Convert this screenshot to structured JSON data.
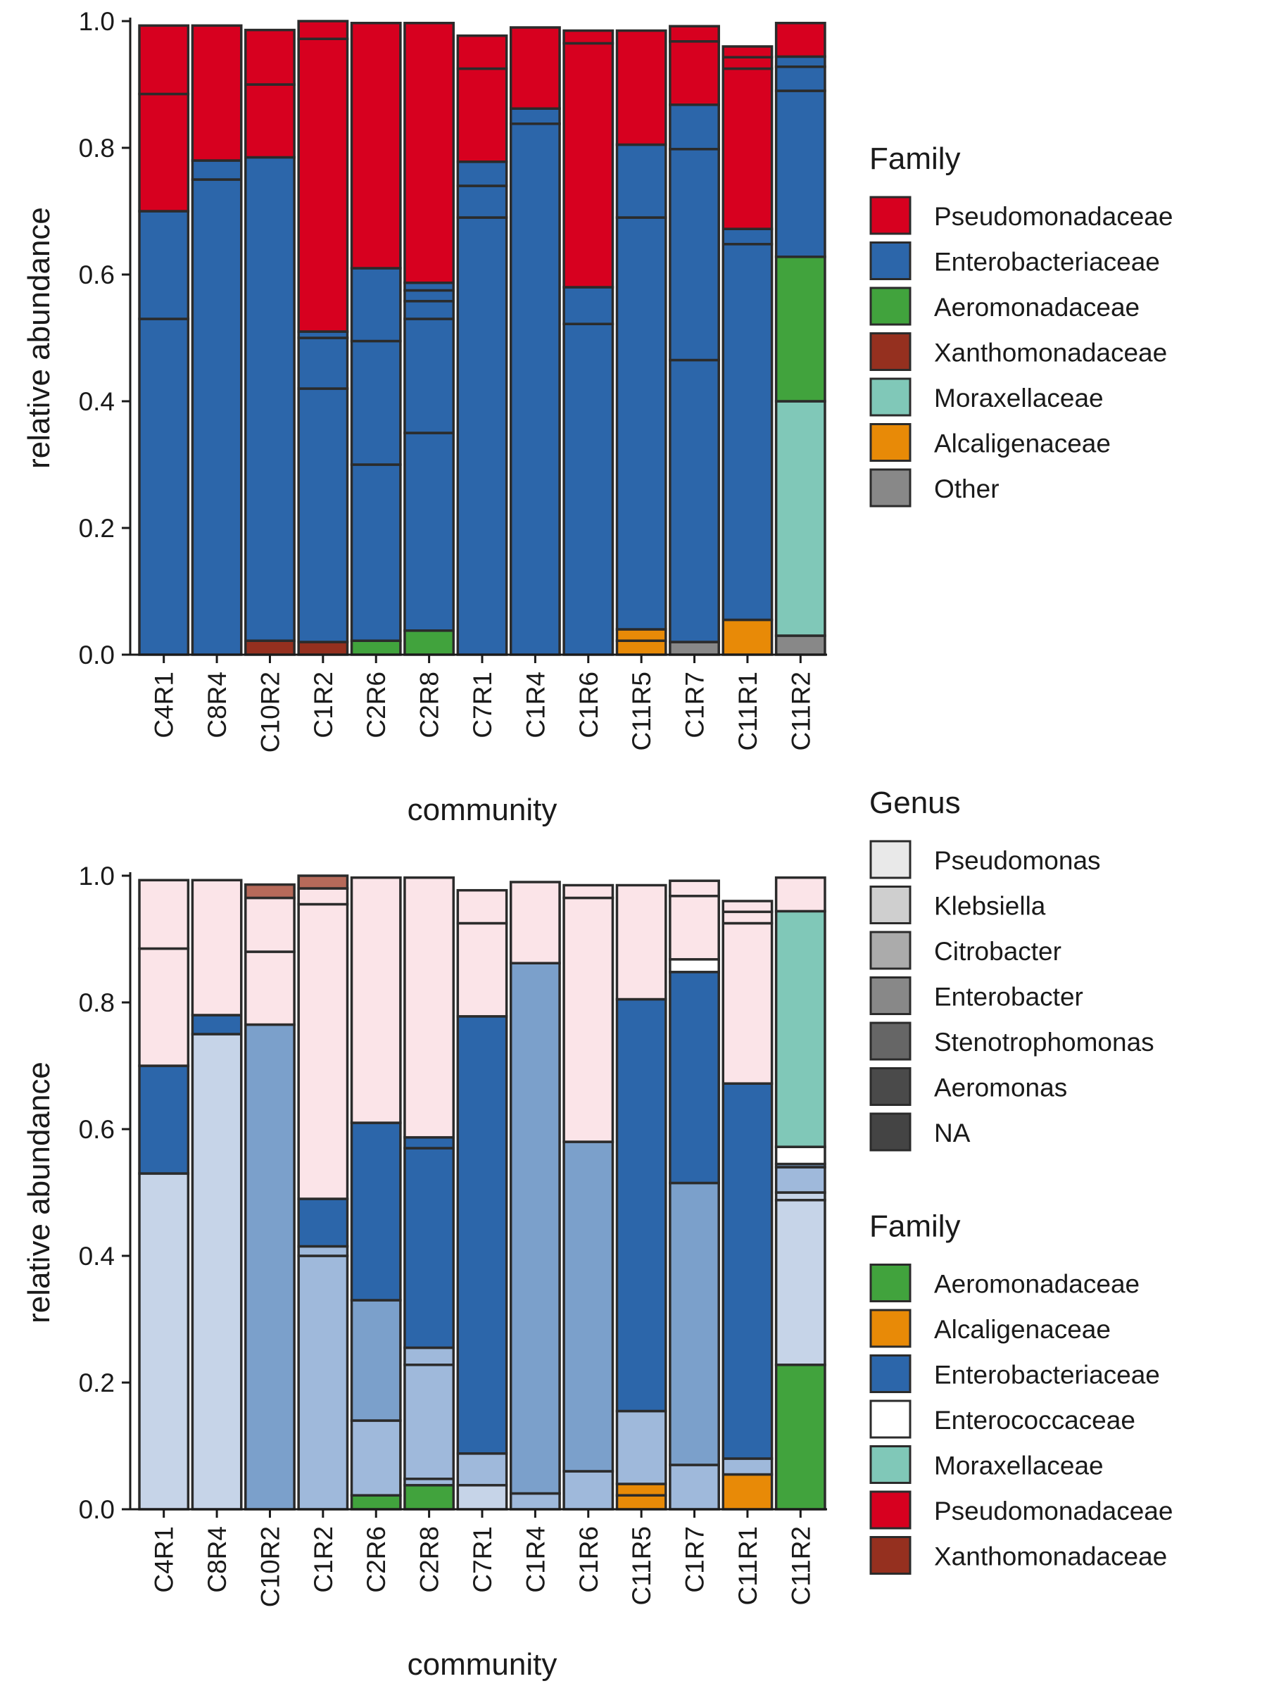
{
  "palette": {
    "Pseudomonadaceae": "#d7001f",
    "Enterobacteriaceae": "#2c66aa",
    "Aeromonadaceae": "#41a33d",
    "Xanthomonadaceae": "#95301f",
    "Moraxellaceae": "#80c8b8",
    "Alcaligenaceae": "#e88a07",
    "Enterococcaceae": "#ffffff",
    "Other": "#888888",
    "pink": "#fbe4e8",
    "blue1": "#c6d4e8",
    "blue2": "#9fb9db",
    "blue3": "#7ba0cb",
    "blue4": "#2c66aa",
    "xan_light": "#b66a5a",
    "edge": "#2b2b2b"
  },
  "chart_data": [
    {
      "type": "bar",
      "stacked": true,
      "categories": [
        "C4R1",
        "C8R4",
        "C10R2",
        "C1R2",
        "C2R6",
        "C2R8",
        "C7R1",
        "C1R4",
        "C1R6",
        "C11R5",
        "C1R7",
        "C11R1",
        "C11R2"
      ],
      "xlabel": "community",
      "ylabel": "relative abundance",
      "ylim": [
        0,
        1
      ],
      "yticks": [
        "0.0",
        "0.2",
        "0.4",
        "0.6",
        "0.8",
        "1.0"
      ],
      "grid": false,
      "legend_position": "right",
      "legends": [
        {
          "title": "Family",
          "entries": [
            {
              "label": "Pseudomonadaceae",
              "color": "#d7001f"
            },
            {
              "label": "Enterobacteriaceae",
              "color": "#2c66aa"
            },
            {
              "label": "Aeromonadaceae",
              "color": "#41a33d"
            },
            {
              "label": "Xanthomonadaceae",
              "color": "#95301f"
            },
            {
              "label": "Moraxellaceae",
              "color": "#80c8b8"
            },
            {
              "label": "Alcaligenaceae",
              "color": "#e88a07"
            },
            {
              "label": "Other",
              "color": "#888888"
            }
          ]
        }
      ],
      "stacks": [
        [
          [
            "Enterobacteriaceae",
            0,
            0.53
          ],
          [
            "Enterobacteriaceae",
            0.53,
            0.7
          ],
          [
            "Pseudomonadaceae",
            0.7,
            0.885
          ],
          [
            "Pseudomonadaceae",
            0.885,
            0.993
          ]
        ],
        [
          [
            "Enterobacteriaceae",
            0,
            0.75
          ],
          [
            "Enterobacteriaceae",
            0.75,
            0.78
          ],
          [
            "Pseudomonadaceae",
            0.78,
            0.993
          ]
        ],
        [
          [
            "Xanthomonadaceae",
            0,
            0.022
          ],
          [
            "Enterobacteriaceae",
            0.022,
            0.785
          ],
          [
            "Pseudomonadaceae",
            0.785,
            0.9
          ],
          [
            "Pseudomonadaceae",
            0.9,
            0.986
          ]
        ],
        [
          [
            "Xanthomonadaceae",
            0,
            0.02
          ],
          [
            "Enterobacteriaceae",
            0.02,
            0.42
          ],
          [
            "Enterobacteriaceae",
            0.42,
            0.5
          ],
          [
            "Enterobacteriaceae",
            0.5,
            0.51
          ],
          [
            "Pseudomonadaceae",
            0.51,
            0.972
          ],
          [
            "Pseudomonadaceae",
            0.972,
            1.0
          ]
        ],
        [
          [
            "Aeromonadaceae",
            0,
            0.022
          ],
          [
            "Enterobacteriaceae",
            0.022,
            0.3
          ],
          [
            "Enterobacteriaceae",
            0.3,
            0.495
          ],
          [
            "Enterobacteriaceae",
            0.495,
            0.61
          ],
          [
            "Pseudomonadaceae",
            0.61,
            0.997
          ]
        ],
        [
          [
            "Aeromonadaceae",
            0,
            0.038
          ],
          [
            "Enterobacteriaceae",
            0.038,
            0.35
          ],
          [
            "Enterobacteriaceae",
            0.35,
            0.53
          ],
          [
            "Enterobacteriaceae",
            0.53,
            0.558
          ],
          [
            "Enterobacteriaceae",
            0.558,
            0.575
          ],
          [
            "Enterobacteriaceae",
            0.575,
            0.587
          ],
          [
            "Pseudomonadaceae",
            0.587,
            0.997
          ]
        ],
        [
          [
            "Enterobacteriaceae",
            0,
            0.69
          ],
          [
            "Enterobacteriaceae",
            0.69,
            0.74
          ],
          [
            "Enterobacteriaceae",
            0.74,
            0.778
          ],
          [
            "Pseudomonadaceae",
            0.778,
            0.925
          ],
          [
            "Pseudomonadaceae",
            0.925,
            0.977
          ]
        ],
        [
          [
            "Enterobacteriaceae",
            0,
            0.838
          ],
          [
            "Enterobacteriaceae",
            0.838,
            0.862
          ],
          [
            "Pseudomonadaceae",
            0.862,
            0.99
          ]
        ],
        [
          [
            "Enterobacteriaceae",
            0,
            0.522
          ],
          [
            "Enterobacteriaceae",
            0.522,
            0.58
          ],
          [
            "Pseudomonadaceae",
            0.58,
            0.965
          ],
          [
            "Pseudomonadaceae",
            0.965,
            0.985
          ]
        ],
        [
          [
            "Alcaligenaceae",
            0,
            0.022
          ],
          [
            "Alcaligenaceae",
            0.022,
            0.04
          ],
          [
            "Enterobacteriaceae",
            0.04,
            0.69
          ],
          [
            "Enterobacteriaceae",
            0.69,
            0.805
          ],
          [
            "Pseudomonadaceae",
            0.805,
            0.985
          ]
        ],
        [
          [
            "Other",
            0,
            0.02
          ],
          [
            "Enterobacteriaceae",
            0.02,
            0.465
          ],
          [
            "Enterobacteriaceae",
            0.465,
            0.798
          ],
          [
            "Enterobacteriaceae",
            0.798,
            0.868
          ],
          [
            "Pseudomonadaceae",
            0.868,
            0.968
          ],
          [
            "Pseudomonadaceae",
            0.968,
            0.992
          ]
        ],
        [
          [
            "Alcaligenaceae",
            0,
            0.055
          ],
          [
            "Enterobacteriaceae",
            0.055,
            0.648
          ],
          [
            "Enterobacteriaceae",
            0.648,
            0.672
          ],
          [
            "Pseudomonadaceae",
            0.672,
            0.925
          ],
          [
            "Pseudomonadaceae",
            0.925,
            0.943
          ],
          [
            "Pseudomonadaceae",
            0.943,
            0.96
          ]
        ],
        [
          [
            "Other",
            0,
            0.03
          ],
          [
            "Moraxellaceae",
            0.03,
            0.4
          ],
          [
            "Aeromonadaceae",
            0.4,
            0.628
          ],
          [
            "Enterobacteriaceae",
            0.628,
            0.89
          ],
          [
            "Enterobacteriaceae",
            0.89,
            0.928
          ],
          [
            "Enterobacteriaceae",
            0.928,
            0.944
          ],
          [
            "Pseudomonadaceae",
            0.944,
            0.997
          ]
        ]
      ]
    },
    {
      "type": "bar",
      "stacked": true,
      "categories": [
        "C4R1",
        "C8R4",
        "C10R2",
        "C1R2",
        "C2R6",
        "C2R8",
        "C7R1",
        "C1R4",
        "C1R6",
        "C11R5",
        "C1R7",
        "C11R1",
        "C11R2"
      ],
      "xlabel": "community",
      "ylabel": "relative abundance",
      "ylim": [
        0,
        1
      ],
      "yticks": [
        "0.0",
        "0.2",
        "0.4",
        "0.6",
        "0.8",
        "1.0"
      ],
      "grid": false,
      "legend_position": "right",
      "legends": [
        {
          "title": "Genus",
          "entries": [
            {
              "label": "Pseudomonas",
              "color": "#e9e9e9"
            },
            {
              "label": "Klebsiella",
              "color": "#cfcfcf"
            },
            {
              "label": "Citrobacter",
              "color": "#ababab"
            },
            {
              "label": "Enterobacter",
              "color": "#888888"
            },
            {
              "label": "Stenotrophomonas",
              "color": "#666666"
            },
            {
              "label": "Aeromonas",
              "color": "#4a4a4a"
            },
            {
              "label": "NA",
              "color": "#444444"
            }
          ]
        },
        {
          "title": "Family",
          "entries": [
            {
              "label": "Aeromonadaceae",
              "color": "#41a33d"
            },
            {
              "label": "Alcaligenaceae",
              "color": "#e88a07"
            },
            {
              "label": "Enterobacteriaceae",
              "color": "#2c66aa"
            },
            {
              "label": "Enterococcaceae",
              "color": "#ffffff"
            },
            {
              "label": "Moraxellaceae",
              "color": "#80c8b8"
            },
            {
              "label": "Pseudomonadaceae",
              "color": "#d7001f"
            },
            {
              "label": "Xanthomonadaceae",
              "color": "#95301f"
            }
          ]
        }
      ],
      "stacks": [
        [
          [
            "blue1",
            0,
            0.53
          ],
          [
            "blue4",
            0.53,
            0.7
          ],
          [
            "pink",
            0.7,
            0.885
          ],
          [
            "pink",
            0.885,
            0.993
          ]
        ],
        [
          [
            "blue1",
            0,
            0.75
          ],
          [
            "blue4",
            0.75,
            0.78
          ],
          [
            "pink",
            0.78,
            0.993
          ]
        ],
        [
          [
            "blue3",
            0,
            0.765
          ],
          [
            "pink",
            0.765,
            0.88
          ],
          [
            "pink",
            0.88,
            0.965
          ],
          [
            "xan_light",
            0.965,
            0.986
          ]
        ],
        [
          [
            "blue2",
            0,
            0.4
          ],
          [
            "blue2",
            0.4,
            0.415
          ],
          [
            "blue4",
            0.415,
            0.49
          ],
          [
            "pink",
            0.49,
            0.955
          ],
          [
            "pink",
            0.955,
            0.98
          ],
          [
            "xan_light",
            0.98,
            1.0
          ]
        ],
        [
          [
            "Aeromonadaceae",
            0,
            0.022
          ],
          [
            "blue2",
            0.022,
            0.14
          ],
          [
            "blue3",
            0.14,
            0.33
          ],
          [
            "blue4",
            0.33,
            0.61
          ],
          [
            "pink",
            0.61,
            0.997
          ]
        ],
        [
          [
            "Aeromonadaceae",
            0,
            0.038
          ],
          [
            "blue2",
            0.038,
            0.048
          ],
          [
            "blue2",
            0.048,
            0.228
          ],
          [
            "blue2",
            0.228,
            0.255
          ],
          [
            "blue4",
            0.255,
            0.57
          ],
          [
            "blue4",
            0.57,
            0.587
          ],
          [
            "pink",
            0.587,
            0.997
          ]
        ],
        [
          [
            "blue1",
            0,
            0.038
          ],
          [
            "blue2",
            0.038,
            0.088
          ],
          [
            "blue4",
            0.088,
            0.778
          ],
          [
            "pink",
            0.778,
            0.925
          ],
          [
            "pink",
            0.925,
            0.977
          ]
        ],
        [
          [
            "blue2",
            0,
            0.025
          ],
          [
            "blue3",
            0.025,
            0.862
          ],
          [
            "pink",
            0.862,
            0.99
          ]
        ],
        [
          [
            "blue2",
            0,
            0.06
          ],
          [
            "blue3",
            0.06,
            0.58
          ],
          [
            "pink",
            0.58,
            0.965
          ],
          [
            "pink",
            0.965,
            0.985
          ]
        ],
        [
          [
            "Alcaligenaceae",
            0,
            0.022
          ],
          [
            "Alcaligenaceae",
            0.022,
            0.04
          ],
          [
            "blue2",
            0.04,
            0.155
          ],
          [
            "blue4",
            0.155,
            0.805
          ],
          [
            "pink",
            0.805,
            0.985
          ]
        ],
        [
          [
            "blue2",
            0,
            0.07
          ],
          [
            "blue3",
            0.07,
            0.515
          ],
          [
            "blue4",
            0.515,
            0.848
          ],
          [
            "Enterococcaceae",
            0.848,
            0.868
          ],
          [
            "pink",
            0.868,
            0.968
          ],
          [
            "pink",
            0.968,
            0.992
          ]
        ],
        [
          [
            "Alcaligenaceae",
            0,
            0.055
          ],
          [
            "blue2",
            0.055,
            0.08
          ],
          [
            "blue4",
            0.08,
            0.672
          ],
          [
            "pink",
            0.672,
            0.925
          ],
          [
            "pink",
            0.925,
            0.943
          ],
          [
            "pink",
            0.943,
            0.96
          ]
        ],
        [
          [
            "Aeromonadaceae",
            0,
            0.228
          ],
          [
            "blue1",
            0.228,
            0.488
          ],
          [
            "blue1",
            0.488,
            0.5
          ],
          [
            "blue2",
            0.5,
            0.54
          ],
          [
            "blue3",
            0.54,
            0.545
          ],
          [
            "Enterococcaceae",
            0.545,
            0.572
          ],
          [
            "Moraxellaceae",
            0.572,
            0.944
          ],
          [
            "pink",
            0.944,
            0.997
          ]
        ]
      ]
    }
  ]
}
